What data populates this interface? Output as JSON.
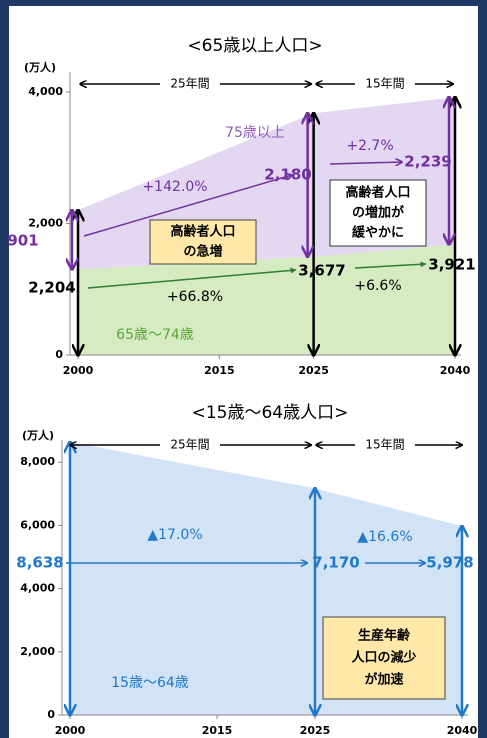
{
  "chart_data": [
    {
      "type": "area",
      "title": "<65歳以上人口>",
      "y_label": "(万人)",
      "x": [
        2000,
        2025,
        2040
      ],
      "xlim": [
        2000,
        2040
      ],
      "xticks": [
        2000,
        2015,
        2025,
        2040
      ],
      "ylim": [
        0,
        4300
      ],
      "yticks": [
        0,
        {
          "value": 2000,
          "label": "2,000"
        },
        {
          "value": 4000,
          "label": "4,000"
        }
      ],
      "series": [
        {
          "name": "65歳〜74歳",
          "color": "#d6ebc2",
          "values": [
            1303,
            1497,
            1682
          ]
        },
        {
          "name": "75歳以上",
          "color": "#e4d7f1",
          "values": [
            901,
            2180,
            2239
          ],
          "value_labels": [
            "901",
            "2,180",
            "2,239"
          ]
        }
      ],
      "totals": {
        "values": [
          2204,
          3677,
          3921
        ],
        "value_labels": [
          "2,204",
          "3,677",
          "3,921"
        ]
      },
      "periods": [
        "25年間",
        "15年間"
      ],
      "growth": [
        "+142.0%",
        "+66.8%",
        "+2.7%",
        "+6.6%"
      ],
      "notes": [
        [
          "高齢者人口",
          "の急増"
        ],
        [
          "高齢者人口",
          "の増加が",
          "緩やかに"
        ]
      ]
    },
    {
      "type": "area",
      "title": "<15歳〜64歳人口>",
      "y_label": "(万人)",
      "x": [
        2000,
        2025,
        2040
      ],
      "xlim": [
        2000,
        2040
      ],
      "xticks": [
        2000,
        2015,
        2025,
        2040
      ],
      "ylim": [
        0,
        8700
      ],
      "yticks": [
        0,
        {
          "value": 2000,
          "label": "2,000"
        },
        {
          "value": 4000,
          "label": "4,000"
        },
        {
          "value": 6000,
          "label": "6,000"
        },
        {
          "value": 8000,
          "label": "8,000"
        }
      ],
      "series": [
        {
          "name": "15歳〜64歳",
          "color": "#d3e3f6",
          "values": [
            8638,
            7170,
            5978
          ],
          "value_labels": [
            "8,638",
            "7,170",
            "5,978"
          ]
        }
      ],
      "periods": [
        "25年間",
        "15年間"
      ],
      "growth": [
        "▲17.0%",
        "▲16.6%"
      ],
      "notes": [
        [
          "生産年齢",
          "人口の減少",
          "が加速"
        ]
      ]
    }
  ]
}
